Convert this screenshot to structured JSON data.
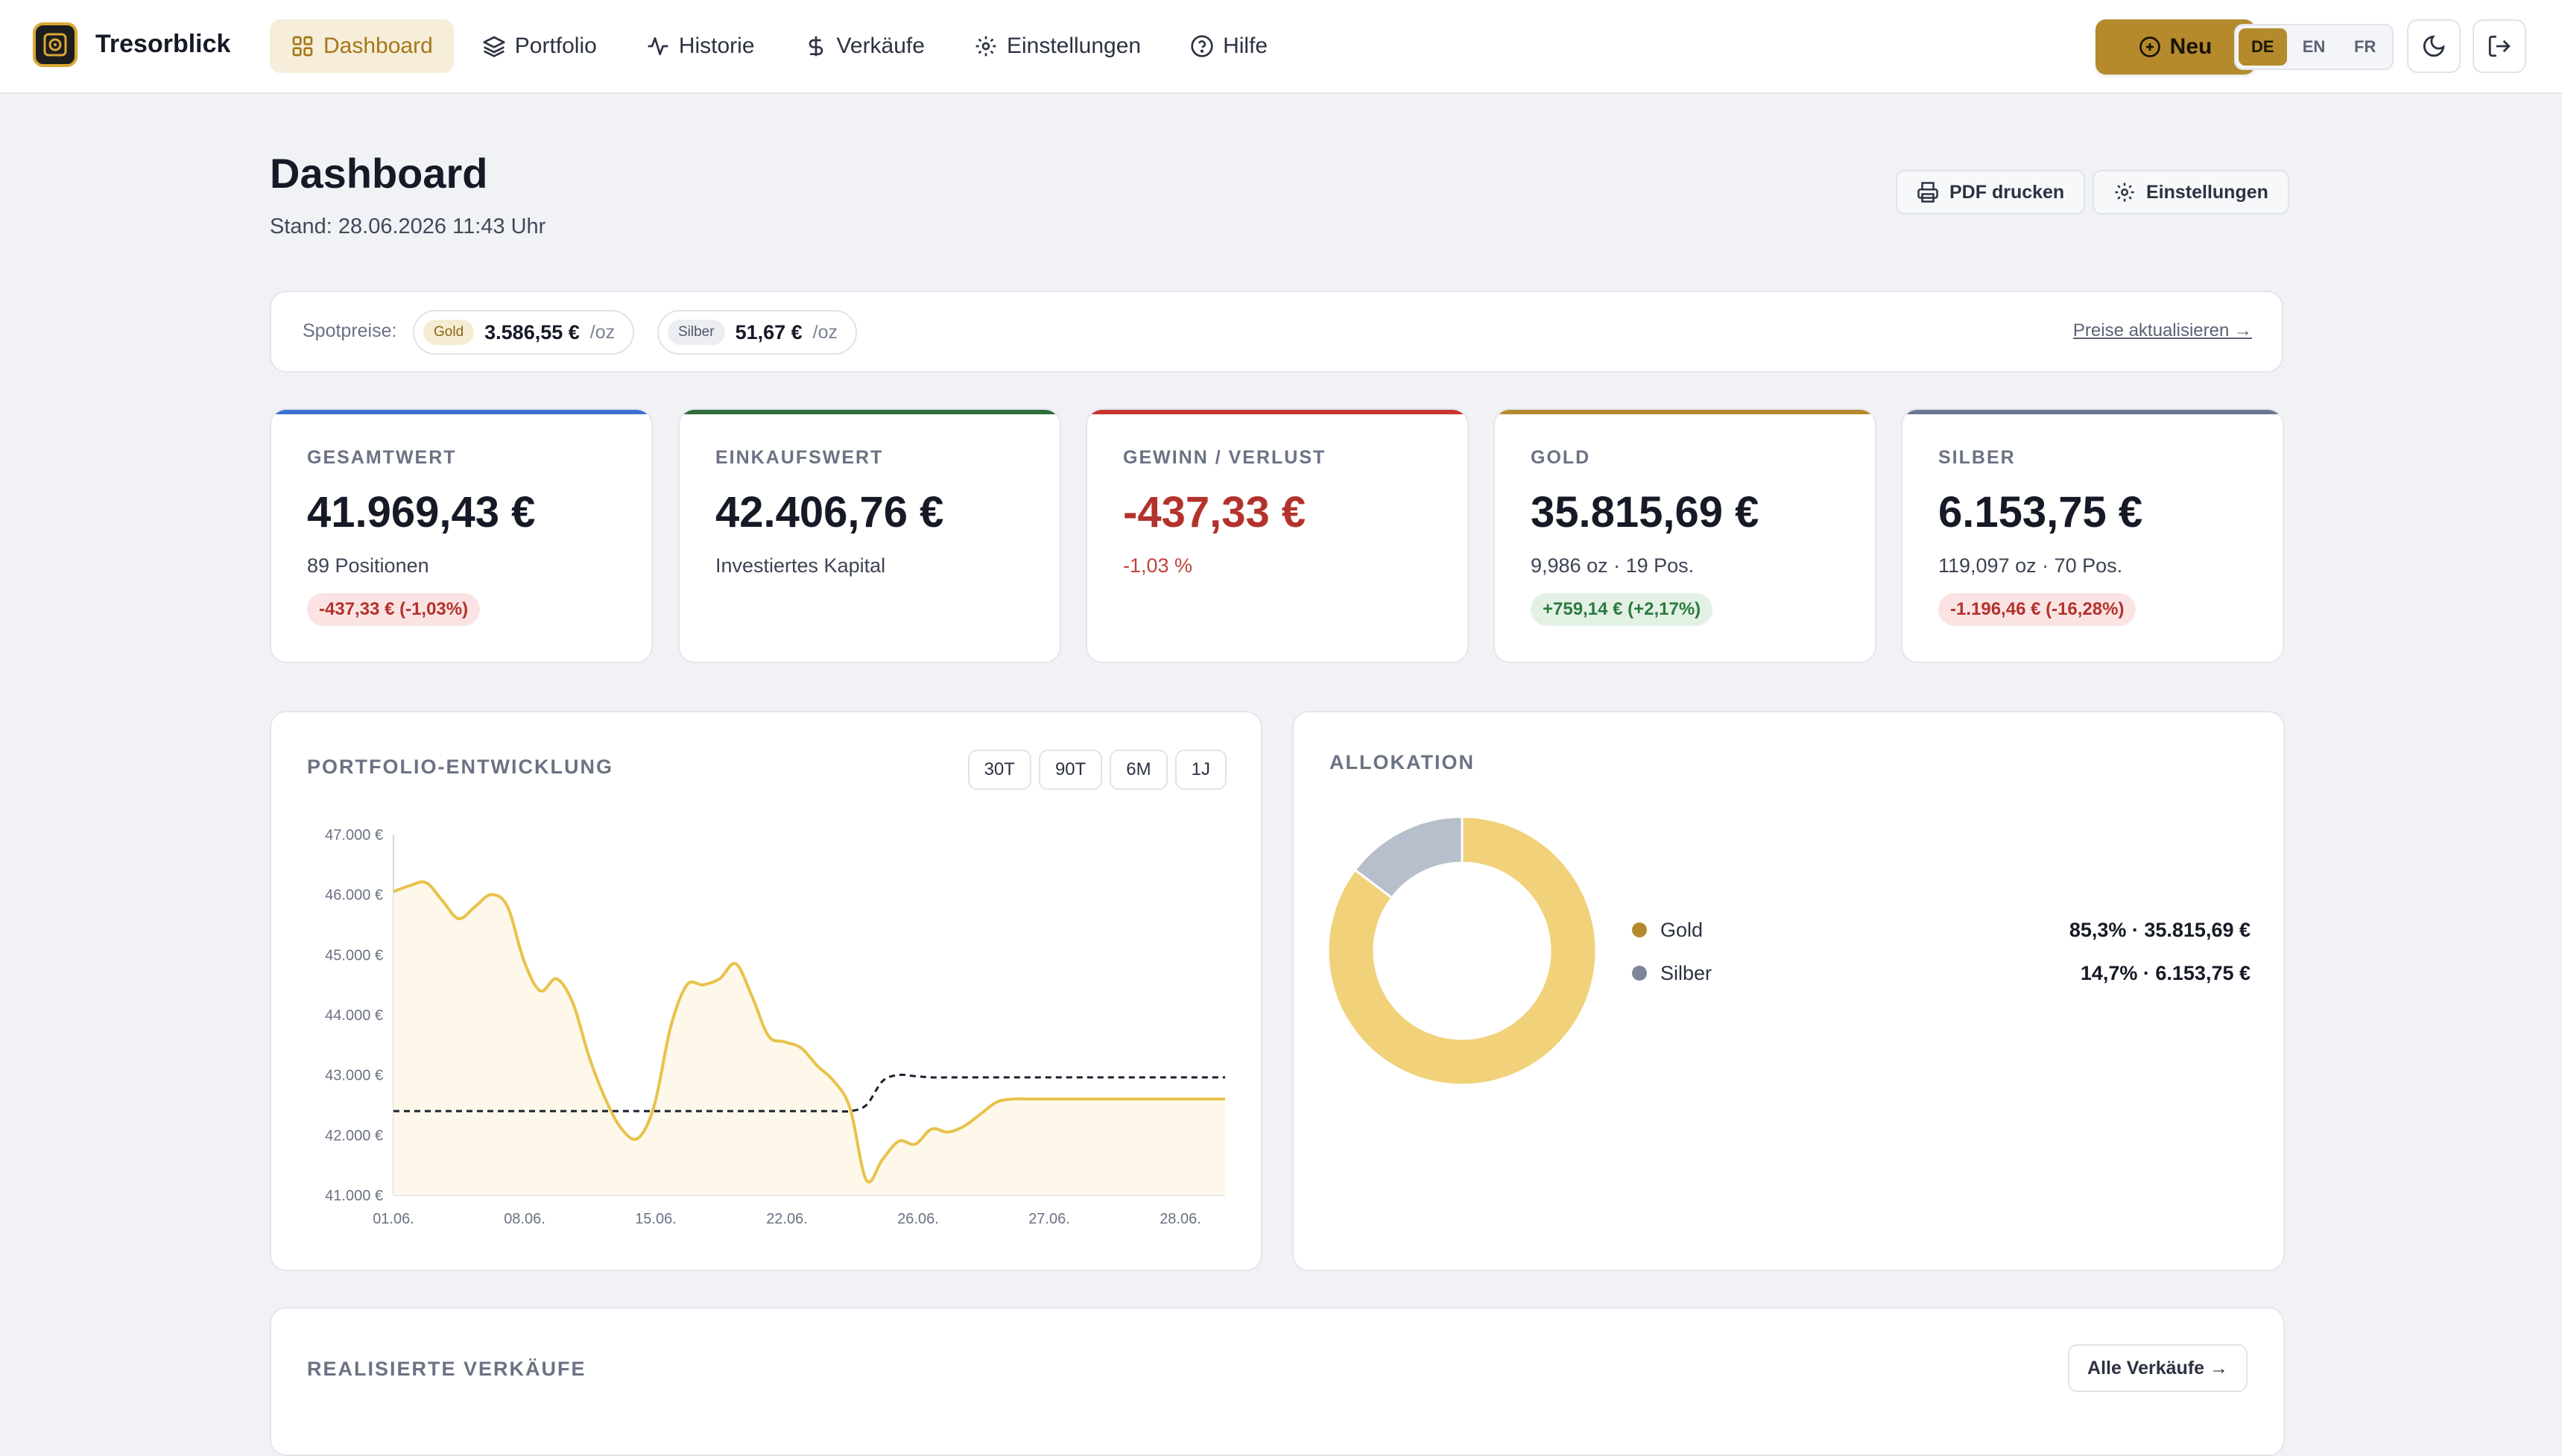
{
  "app": {
    "name": "Tresorblick"
  },
  "nav": {
    "items": [
      {
        "label": "Dashboard",
        "icon": "grid-icon",
        "active": true
      },
      {
        "label": "Portfolio",
        "icon": "layers-icon"
      },
      {
        "label": "Historie",
        "icon": "activity-icon"
      },
      {
        "label": "Verkäufe",
        "icon": "dollar-icon"
      },
      {
        "label": "Einstellungen",
        "icon": "gear-icon"
      },
      {
        "label": "Hilfe",
        "icon": "help-icon"
      }
    ],
    "new_label": "Neu",
    "languages": [
      "DE",
      "EN",
      "FR"
    ],
    "active_language": "DE"
  },
  "header": {
    "title": "Dashboard",
    "subtitle": "Stand: 28.06.2026 11:43 Uhr",
    "print_label": "PDF drucken",
    "settings_label": "Einstellungen"
  },
  "spot": {
    "label": "Spotpreise:",
    "gold_tag": "Gold",
    "gold_value": "3.586,55 €",
    "silver_tag": "Silber",
    "silver_value": "51,67 €",
    "unit": "/oz",
    "refresh_label": "Preise aktualisieren →"
  },
  "cards": [
    {
      "label": "GESAMTWERT",
      "value": "41.969,43 €",
      "sub": "89 Positionen",
      "pill": "-437,33 € (-1,03%)",
      "pill_type": "neg",
      "accent": "#3b6fd1"
    },
    {
      "label": "EINKAUFSWERT",
      "value": "42.406,76 €",
      "sub": "Investiertes Kapital",
      "pill": "",
      "pill_type": "",
      "accent": "#2f6d3a"
    },
    {
      "label": "GEWINN / VERLUST",
      "value": "-437,33 €",
      "sub": "-1,03 %",
      "pill": "",
      "pill_type": "",
      "accent": "#c8352f",
      "negative": true
    },
    {
      "label": "GOLD",
      "value": "35.815,69 €",
      "sub": "9,986 oz · 19 Pos.",
      "pill": "+759,14 € (+2,17%)",
      "pill_type": "pos",
      "accent": "#b48a2c"
    },
    {
      "label": "SILBER",
      "value": "6.153,75 €",
      "sub": "119,097 oz · 70 Pos.",
      "pill": "-1.196,46 € (-16,28%)",
      "pill_type": "neg",
      "accent": "#6b7790"
    }
  ],
  "portfolio_panel": {
    "title": "PORTFOLIO-ENTWICKLUNG",
    "ranges": [
      "30T",
      "90T",
      "6M",
      "1J"
    ]
  },
  "allocation_panel": {
    "title": "ALLOKATION",
    "items": [
      {
        "name": "Gold",
        "value": "85,3% · 35.815,69 €",
        "color": "#b48a2c"
      },
      {
        "name": "Silber",
        "value": "14,7% · 6.153,75 €",
        "color": "#7d8699"
      }
    ]
  },
  "sales_panel": {
    "title": "REALISIERTE VERKÄUFE",
    "all_label": "Alle Verkäufe →"
  },
  "chart_data": [
    {
      "type": "area",
      "ylim": [
        41000,
        47000
      ],
      "yticks": [
        "47.000 €",
        "46.000 €",
        "45.000 €",
        "44.000 €",
        "43.000 €",
        "42.000 €",
        "41.000 €"
      ],
      "xticks": [
        "01.06.",
        "08.06.",
        "15.06.",
        "22.06.",
        "26.06.",
        "27.06.",
        "28.06."
      ],
      "series": [
        {
          "role": "portfolio value",
          "color": "#e8c24a",
          "values": [
            46050,
            46150,
            46200,
            45900,
            45600,
            45800,
            46000,
            45800,
            44900,
            44400,
            44600,
            44200,
            43300,
            42600,
            42100,
            41950,
            42500,
            43800,
            44500,
            44500,
            44600,
            44850,
            44300,
            43650,
            43550,
            43450,
            43150,
            42900,
            42450,
            41250,
            41600,
            41900,
            41850,
            42100,
            42050,
            42150,
            42350,
            42550,
            42600,
            42600,
            42600,
            42600,
            42600,
            42600,
            42600,
            42600,
            42600,
            42600,
            42600,
            42600,
            42600,
            42600
          ]
        },
        {
          "role": "purchase value",
          "color": "#1c2130",
          "style": "dashed",
          "values": [
            42400,
            42400,
            42400,
            42400,
            42400,
            42400,
            42400,
            42400,
            42400,
            42400,
            42400,
            42400,
            42400,
            42400,
            42400,
            42400,
            42400,
            42400,
            42400,
            42400,
            42400,
            42400,
            42400,
            42400,
            42400,
            42400,
            42400,
            42400,
            42400,
            42500,
            42900,
            43000,
            42980,
            42960,
            42960,
            42960,
            42960,
            42960,
            42960,
            42960,
            42960,
            42960,
            42960,
            42960,
            42960,
            42960,
            42960,
            42960,
            42960,
            42960,
            42960,
            42960
          ]
        }
      ]
    },
    {
      "type": "pie",
      "categories": [
        "Gold",
        "Silber"
      ],
      "values": [
        85.3,
        14.7
      ],
      "colors": [
        "#f1d27a",
        "#b7bfcc"
      ]
    }
  ]
}
